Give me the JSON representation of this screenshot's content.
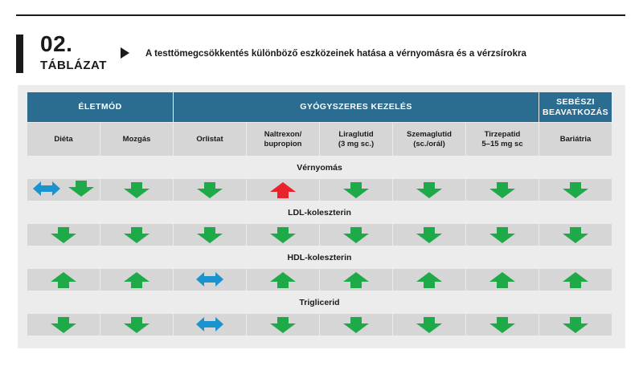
{
  "label": {
    "number": "02.",
    "word": "TÁBLÁZAT"
  },
  "title": "A testtömegcsökkentés különböző eszközeinek hatása a vérnyomásra és a vérzsírokra",
  "groups": [
    {
      "label": "ÉLETMÓD",
      "span": 2
    },
    {
      "label": "GYÓGYSZERES KEZELÉS",
      "span": 5
    },
    {
      "label": "SEBÉSZI BEAVATKOZÁS",
      "span": 1
    }
  ],
  "columns": [
    {
      "line1": "Diéta",
      "line2": ""
    },
    {
      "line1": "Mozgás",
      "line2": ""
    },
    {
      "line1": "Orlistat",
      "line2": ""
    },
    {
      "line1": "Naltrexon/",
      "line2": "bupropion"
    },
    {
      "line1": "Liraglutid",
      "line2": "(3 mg sc.)"
    },
    {
      "line1": "Szemaglutid",
      "line2": "(sc./orál)"
    },
    {
      "line1": "Tirzepatid",
      "line2": "5–15 mg sc"
    },
    {
      "line1": "Bariátria",
      "line2": ""
    }
  ],
  "sections": [
    {
      "label": "Vérnyomás",
      "cells": [
        [
          "both",
          "down"
        ],
        [
          "down"
        ],
        [
          "down"
        ],
        [
          "up-red"
        ],
        [
          "down"
        ],
        [
          "down"
        ],
        [
          "down"
        ],
        [
          "down"
        ]
      ]
    },
    {
      "label": "LDL-koleszterin",
      "cells": [
        [
          "down"
        ],
        [
          "down"
        ],
        [
          "down"
        ],
        [
          "down"
        ],
        [
          "down"
        ],
        [
          "down"
        ],
        [
          "down"
        ],
        [
          "down"
        ]
      ]
    },
    {
      "label": "HDL-koleszterin",
      "cells": [
        [
          "up"
        ],
        [
          "up"
        ],
        [
          "both"
        ],
        [
          "up"
        ],
        [
          "up"
        ],
        [
          "up"
        ],
        [
          "up"
        ],
        [
          "up"
        ]
      ]
    },
    {
      "label": "Triglicerid",
      "cells": [
        [
          "down"
        ],
        [
          "down"
        ],
        [
          "both"
        ],
        [
          "down"
        ],
        [
          "down"
        ],
        [
          "down"
        ],
        [
          "down"
        ],
        [
          "down"
        ]
      ]
    }
  ],
  "icon_meanings": {
    "down": "arrow-down-green-icon",
    "up": "arrow-up-green-icon",
    "up-red": "arrow-up-red-icon",
    "both": "arrow-left-right-blue-icon"
  },
  "colors": {
    "header_bg": "#2a6d91",
    "header_text": "#ffffff",
    "cell_bg": "#d6d6d6",
    "section_bg": "#ececec",
    "green": "#1faa4a",
    "red": "#e8232b",
    "blue": "#1a93cf"
  }
}
